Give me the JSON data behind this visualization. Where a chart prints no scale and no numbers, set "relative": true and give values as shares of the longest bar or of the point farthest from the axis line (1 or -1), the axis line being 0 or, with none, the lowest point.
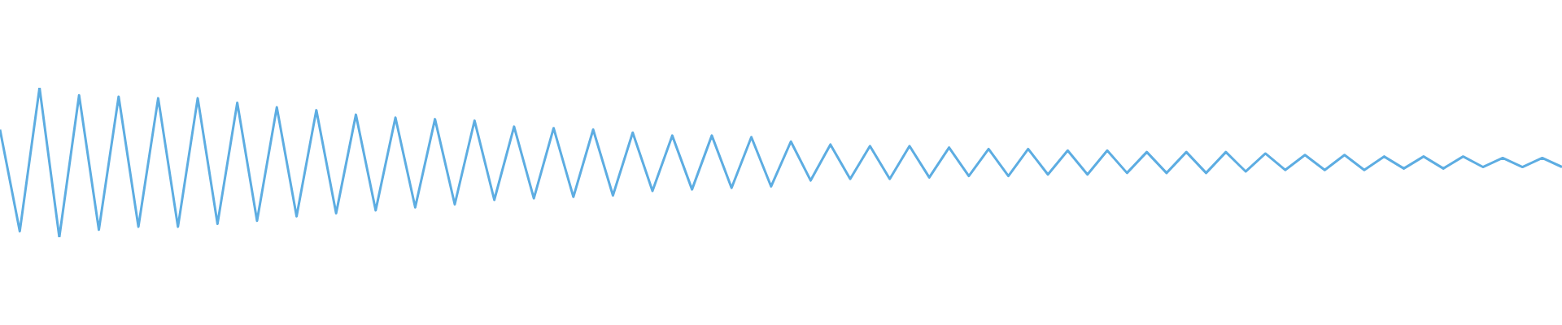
{
  "chart_data": {
    "type": "line",
    "relative": true,
    "grid": false,
    "legend": false,
    "marker": "none",
    "line_style": "solid",
    "categories": [
      null,
      null,
      null,
      null,
      null,
      null,
      null,
      null,
      null,
      null,
      null,
      null,
      null,
      null,
      null,
      null,
      null,
      null,
      null,
      null,
      null,
      null,
      null,
      null,
      null,
      null,
      null,
      null,
      null,
      null,
      null,
      null,
      null,
      null,
      null,
      null,
      null,
      null,
      null,
      null,
      null,
      null,
      null,
      null,
      null,
      null,
      null,
      null,
      null,
      null,
      null,
      null,
      null,
      null,
      null,
      null,
      null,
      null,
      null,
      null,
      null,
      null,
      null,
      null,
      null,
      null,
      null,
      null,
      null,
      null,
      null,
      null,
      null,
      null,
      null,
      null,
      null,
      null,
      null,
      null
    ],
    "series": [
      {
        "color": "#5dade2",
        "values": [
          0.72,
          0.04,
          1.0,
          0.0,
          0.95,
          0.05,
          0.94,
          0.07,
          0.93,
          0.07,
          0.93,
          0.09,
          0.9,
          0.11,
          0.87,
          0.14,
          0.85,
          0.16,
          0.82,
          0.18,
          0.8,
          0.2,
          0.79,
          0.22,
          0.78,
          0.25,
          0.74,
          0.26,
          0.73,
          0.27,
          0.72,
          0.28,
          0.7,
          0.31,
          0.68,
          0.32,
          0.68,
          0.33,
          0.67,
          0.34,
          0.64,
          0.38,
          0.62,
          0.39,
          0.61,
          0.39,
          0.61,
          0.4,
          0.6,
          0.41,
          0.59,
          0.41,
          0.59,
          0.42,
          0.58,
          0.42,
          0.58,
          0.43,
          0.57,
          0.43,
          0.57,
          0.43,
          0.57,
          0.44,
          0.56,
          0.45,
          0.55,
          0.45,
          0.55,
          0.45,
          0.54,
          0.46,
          0.54,
          0.46,
          0.54,
          0.47,
          0.53,
          0.47,
          0.53,
          0.47
        ]
      }
    ]
  }
}
